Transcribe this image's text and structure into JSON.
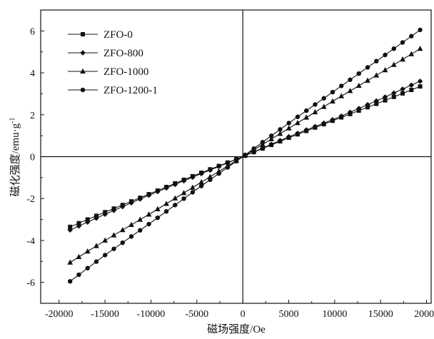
{
  "chart_data": {
    "type": "line",
    "xlabel": "磁场强度/Oe",
    "ylabel": "磁化强度/emu·g",
    "ylabel_superscript": "-1",
    "xlim": [
      -22000,
      20500
    ],
    "ylim": [
      -7,
      7
    ],
    "xticks": [
      -20000,
      -15000,
      -10000,
      -5000,
      0,
      5000,
      10000,
      15000,
      20000
    ],
    "yticks": [
      -6,
      -4,
      -2,
      0,
      2,
      4,
      6
    ],
    "xtick_labels": [
      "-20000",
      "-15000",
      "-10000",
      "-5000",
      "0",
      "5000",
      "10000",
      "15000",
      "20000"
    ],
    "ytick_labels": [
      "-6",
      "-4",
      "-2",
      "0",
      "2",
      "4",
      "6"
    ],
    "grid": false,
    "zero_lines": true,
    "legend_position": "top-left",
    "series": [
      {
        "name": "ZFO-0",
        "marker": "square",
        "x": [
          -18800,
          -15000,
          -10000,
          -5000,
          0,
          5000,
          10000,
          15000,
          19300
        ],
        "y": [
          -3.35,
          -2.65,
          -1.75,
          -0.85,
          0.0,
          0.9,
          1.75,
          2.6,
          3.35
        ]
      },
      {
        "name": "ZFO-800",
        "marker": "diamond",
        "x": [
          -18800,
          -15000,
          -10000,
          -5000,
          0,
          5000,
          10000,
          15000,
          19300
        ],
        "y": [
          -3.5,
          -2.75,
          -1.8,
          -0.9,
          0.0,
          0.95,
          1.8,
          2.75,
          3.6
        ]
      },
      {
        "name": "ZFO-1000",
        "marker": "triangle",
        "x": [
          -18800,
          -15000,
          -10000,
          -5000,
          0,
          5000,
          10000,
          15000,
          19300
        ],
        "y": [
          -5.05,
          -4.0,
          -2.7,
          -1.35,
          0.0,
          1.35,
          2.7,
          4.0,
          5.15
        ]
      },
      {
        "name": "ZFO-1200-1",
        "marker": "circle",
        "x": [
          -18800,
          -15000,
          -10000,
          -5000,
          0,
          5000,
          10000,
          15000,
          19300
        ],
        "y": [
          -5.95,
          -4.7,
          -3.15,
          -1.55,
          0.0,
          1.6,
          3.15,
          4.7,
          6.05
        ]
      }
    ]
  }
}
